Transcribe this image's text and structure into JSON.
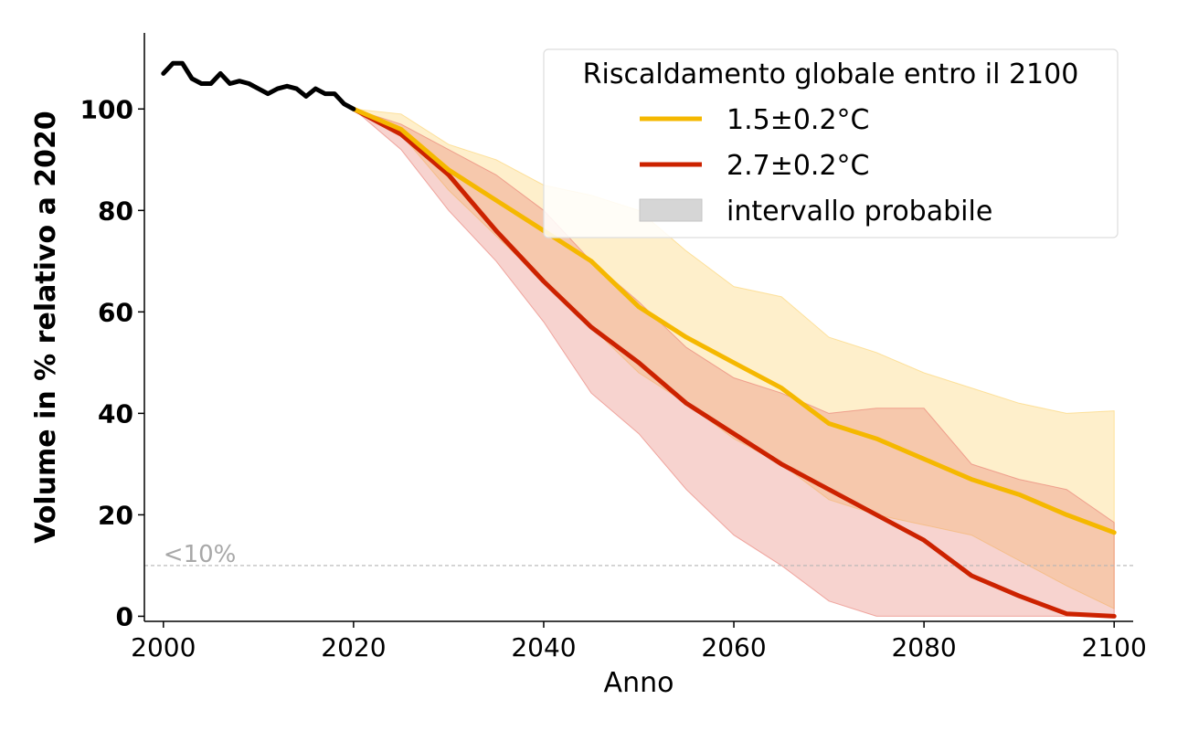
{
  "chart_data": {
    "type": "line",
    "xlabel": "Anno",
    "ylabel": "Volume in % relativo a 2020",
    "xlim": [
      1998,
      2102
    ],
    "ylim": [
      -1,
      115
    ],
    "xticks": [
      2000,
      2020,
      2040,
      2060,
      2080,
      2100
    ],
    "yticks": [
      0,
      20,
      40,
      60,
      80,
      100
    ],
    "grid": false,
    "legend": {
      "title": "Riscaldamento globale entro il 2100",
      "placement": "top-right",
      "entries": [
        "1.5±0.2°C",
        "2.7±0.2°C",
        "intervallo probabile"
      ]
    },
    "threshold": {
      "y": 10,
      "label": "<10%"
    },
    "historical": {
      "color": "#000000",
      "x": [
        2000,
        2001,
        2002,
        2003,
        2004,
        2005,
        2006,
        2007,
        2008,
        2009,
        2010,
        2011,
        2012,
        2013,
        2014,
        2015,
        2016,
        2017,
        2018,
        2019,
        2020
      ],
      "y": [
        107,
        109,
        109,
        106,
        105,
        105,
        107,
        105,
        105.5,
        105,
        104,
        103,
        104,
        104.5,
        104,
        102.5,
        104,
        103,
        103,
        101,
        100
      ]
    },
    "series": [
      {
        "name": "1.5±0.2°C",
        "color": "#f5b800",
        "band_color": "#fbd26a",
        "x": [
          2020,
          2025,
          2030,
          2035,
          2040,
          2045,
          2050,
          2055,
          2060,
          2065,
          2070,
          2075,
          2080,
          2085,
          2090,
          2095,
          2100
        ],
        "y": [
          100,
          96,
          88,
          82,
          76,
          70,
          61,
          55,
          50,
          45,
          38,
          35,
          31,
          27,
          24,
          20,
          16.5
        ],
        "low": [
          100,
          95,
          84,
          75,
          66,
          57,
          48,
          42,
          35,
          30,
          23,
          20,
          18,
          16,
          11,
          6,
          1.5
        ],
        "high": [
          100,
          99,
          93,
          90,
          85,
          83,
          80,
          72,
          65,
          63,
          55,
          52,
          48,
          45,
          42,
          40,
          40.5
        ]
      },
      {
        "name": "2.7±0.2°C",
        "color": "#cc2200",
        "band_color": "#e8786e",
        "x": [
          2020,
          2025,
          2030,
          2035,
          2040,
          2045,
          2050,
          2055,
          2060,
          2065,
          2070,
          2075,
          2080,
          2085,
          2090,
          2095,
          2100
        ],
        "y": [
          100,
          95,
          87,
          76,
          66,
          57,
          50,
          42,
          36,
          30,
          25,
          20,
          15,
          8,
          4,
          0.5,
          0
        ],
        "low": [
          100,
          92,
          80,
          70,
          58,
          44,
          36,
          25,
          16,
          10,
          3,
          0,
          0,
          0,
          0,
          0,
          0
        ],
        "high": [
          100,
          97,
          92,
          87,
          80,
          70,
          62,
          53,
          47,
          44,
          40,
          41,
          41,
          30,
          27,
          25,
          18.5
        ]
      }
    ]
  }
}
